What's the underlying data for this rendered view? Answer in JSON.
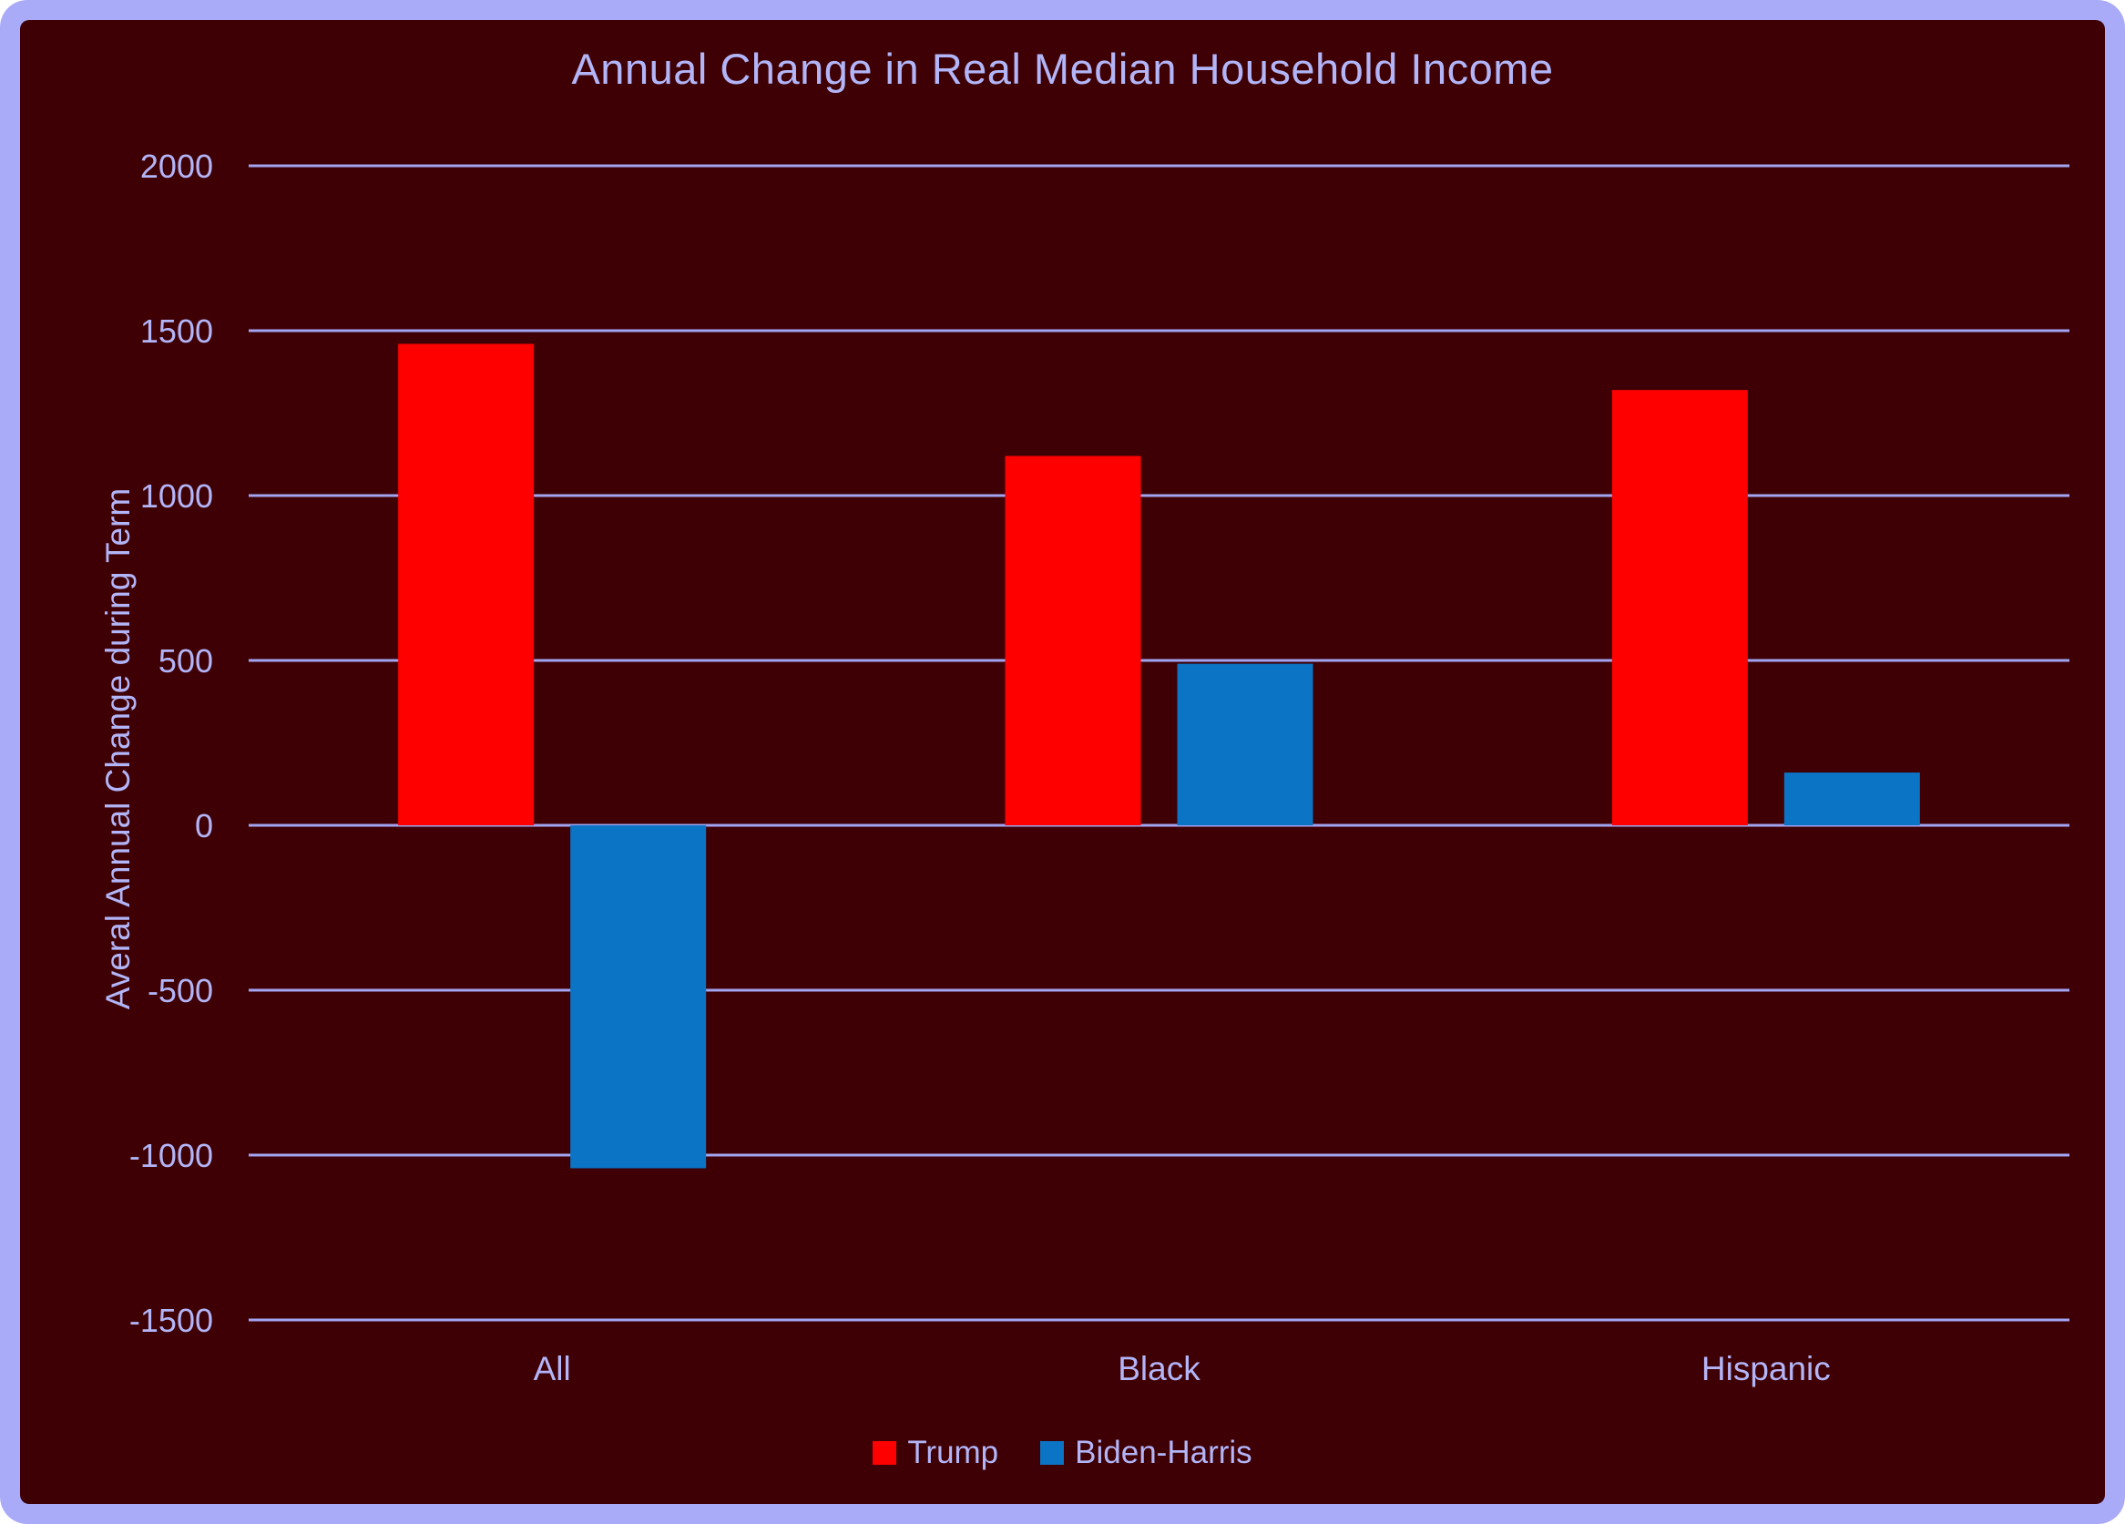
{
  "frame": {
    "border_color": "#A9ABF8",
    "panel_color": "#3F0005",
    "text_color": "#B2B5F7",
    "gridline_color": "#A2A5F1"
  },
  "chart_data": {
    "type": "bar",
    "title": "Annual Change in Real Median Household Income",
    "xlabel": "",
    "ylabel": "Averal Annual Change during Term",
    "categories": [
      "All",
      "Black",
      "Hispanic"
    ],
    "series": [
      {
        "name": "Trump",
        "color": "#FF0000",
        "values": [
          1460,
          1120,
          1320
        ]
      },
      {
        "name": "Biden-Harris",
        "color": "#0B74C4",
        "values": [
          -1040,
          490,
          160
        ]
      }
    ],
    "ylim": [
      -1500,
      2000
    ],
    "yticks": [
      2000,
      1500,
      1000,
      500,
      0,
      -500,
      -1000,
      -1500
    ],
    "grid": true,
    "legend_position": "bottom"
  }
}
